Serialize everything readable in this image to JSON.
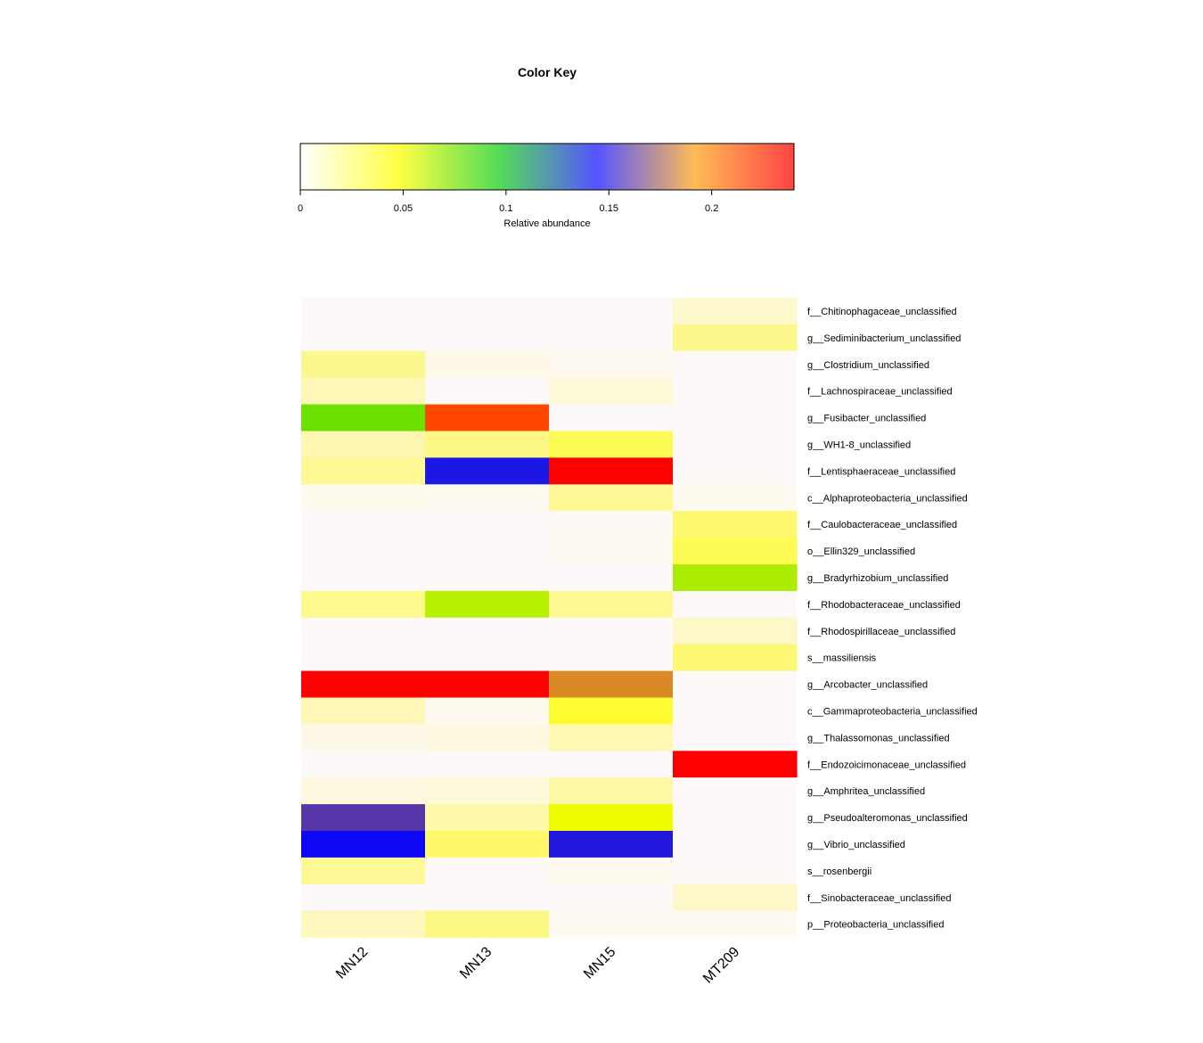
{
  "chart_data": {
    "type": "heatmap",
    "color_key": {
      "title": "Color Key",
      "label": "Relative abundance",
      "range": [
        0,
        0.24
      ],
      "ticks": [
        0,
        0.05,
        0.1,
        0.15,
        0.2
      ],
      "tick_labels": [
        "0",
        "0.05",
        "0.1",
        "0.15",
        "0.2"
      ],
      "gradient": [
        "#ffffff",
        "#ffff44",
        "#55dd55",
        "#5555ff",
        "#ffbb55",
        "#ff4444"
      ]
    },
    "columns": [
      "MN12",
      "MN13",
      "MN15",
      "MT209"
    ],
    "rows": [
      "f__Chitinophagaceae_unclassified",
      "g__Sediminibacterium_unclassified",
      "g__Clostridium_unclassified",
      "f__Lachnospiraceae_unclassified",
      "g__Fusibacter_unclassified",
      "g__WH1-8_unclassified",
      "f__Lentisphaeraceae_unclassified",
      "c__Alphaproteobacteria_unclassified",
      "f__Caulobacteraceae_unclassified",
      "o__Ellin329_unclassified",
      "g__Bradyrhizobium_unclassified",
      "f__Rhodobacteraceae_unclassified",
      "f__Rhodospirillaceae_unclassified",
      "s__massiliensis",
      "g__Arcobacter_unclassified",
      "c__Gammaproteobacteria_unclassified",
      "g__Thalassomonas_unclassified",
      "f__Endozoicimonaceae_unclassified",
      "g__Amphritea_unclassified",
      "g__Pseudoalteromonas_unclassified",
      "g__Vibrio_unclassified",
      "s__rosenbergii",
      "f__Sinobacteraceae_unclassified",
      "p__Proteobacteria_unclassified"
    ],
    "values": [
      [
        0,
        0,
        0,
        0.02
      ],
      [
        0,
        0,
        0,
        0.03
      ],
      [
        0.03,
        0.01,
        0.005,
        0
      ],
      [
        0.02,
        0,
        0.015,
        0
      ],
      [
        0.09,
        0.23,
        0,
        0
      ],
      [
        0.02,
        0.03,
        0.04,
        0
      ],
      [
        0.03,
        0.155,
        0.25,
        0
      ],
      [
        0.005,
        0.005,
        0.03,
        0.005
      ],
      [
        0,
        0,
        0,
        0.035
      ],
      [
        0,
        0,
        0.005,
        0.04
      ],
      [
        0,
        0,
        0,
        0.075
      ],
      [
        0.03,
        0.07,
        0.03,
        0
      ],
      [
        0,
        0,
        0,
        0.02
      ],
      [
        0,
        0,
        0,
        0.035
      ],
      [
        0.25,
        0.25,
        0.2,
        0
      ],
      [
        0.02,
        0.005,
        0.045,
        0
      ],
      [
        0.01,
        0.01,
        0.025,
        0
      ],
      [
        0,
        0,
        0,
        0.25
      ],
      [
        0.01,
        0.01,
        0.025,
        0
      ],
      [
        0.16,
        0.025,
        0.055,
        0
      ],
      [
        0.15,
        0.035,
        0.155,
        0
      ],
      [
        0.03,
        0,
        0.008,
        0
      ],
      [
        0,
        0,
        0,
        0.02
      ],
      [
        0.02,
        0.035,
        0.005,
        0.005
      ]
    ],
    "colors": {
      "f__Chitinophagaceae_unclassified": [
        "#fdf9f8",
        "#fdf9f8",
        "#fdf9f8",
        "#fef9cc"
      ],
      "g__Sediminibacterium_unclassified": [
        "#fdf9f8",
        "#fdf9f8",
        "#fdf9f8",
        "#fdf88e"
      ],
      "g__Clostridium_unclassified": [
        "#fdf88e",
        "#fef9e7",
        "#fdf9f0",
        "#fdf9f8"
      ],
      "f__Lachnospiraceae_unclassified": [
        "#fef7b5",
        "#fdf9f8",
        "#fef9d9",
        "#fdf9f8"
      ],
      "g__Fusibacter_unclassified": [
        "#6ae101",
        "#ff4700",
        "#fdf9f8",
        "#fdf9f8"
      ],
      "g__WH1-8_unclassified": [
        "#fef7b1",
        "#fef884",
        "#fdfc56",
        "#fdf9f8"
      ],
      "f__Lentisphaeraceae_unclassified": [
        "#fef895",
        "#1b18e3",
        "#ff0000",
        "#fdf9f8"
      ],
      "c__Alphaproteobacteria_unclassified": [
        "#fdf9ed",
        "#fef9ee",
        "#fef896",
        "#fdfaf0"
      ],
      "f__Caulobacteraceae_unclassified": [
        "#fdf9f8",
        "#fdf9f8",
        "#fdf9f4",
        "#fdf870"
      ],
      "o__Ellin329_unclassified": [
        "#fdf9f8",
        "#fdf9f8",
        "#fdfaf2",
        "#fdfc55"
      ],
      "g__Bradyrhizobium_unclassified": [
        "#fdf9f8",
        "#fdf9f8",
        "#fdf9f8",
        "#acec02"
      ],
      "f__Rhodobacteraceae_unclassified": [
        "#fdf98c",
        "#b8f102",
        "#fef895",
        "#fdf9f8"
      ],
      "f__Rhodospirillaceae_unclassified": [
        "#fdf9f8",
        "#fdf9f8",
        "#fdf9f8",
        "#fef7c7"
      ],
      "s__massiliensis": [
        "#fdf9f8",
        "#fdf9f8",
        "#fdf9f8",
        "#fdf873"
      ],
      "g__Arcobacter_unclassified": [
        "#ff0000",
        "#fe0101",
        "#d98a26",
        "#fdf9f8"
      ],
      "c__Gammaproteobacteria_unclassified": [
        "#fef7b8",
        "#fdf9ee",
        "#fdfc31",
        "#fdf9f8"
      ],
      "g__Thalassomonas_unclassified": [
        "#fef8e8",
        "#fef8e1",
        "#fef8b2",
        "#fdf9f8"
      ],
      "f__Endozoicimonaceae_unclassified": [
        "#fdf9f8",
        "#fdf9f8",
        "#fdf9f8",
        "#ff0000"
      ],
      "g__Amphritea_unclassified": [
        "#fef8de",
        "#fef8db",
        "#fef7a6",
        "#fdf9f8"
      ],
      "g__Pseudoalteromonas_unclassified": [
        "#5636a7",
        "#fef8aa",
        "#eefd00",
        "#fdf9f8"
      ],
      "g__Vibrio_unclassified": [
        "#0d07f4",
        "#fef86a",
        "#2118dc",
        "#fdf9f8"
      ],
      "s__rosenbergii": [
        "#fef894",
        "#fdf9f8",
        "#fdf9ee",
        "#fdf9f8"
      ],
      "f__Sinobacteraceae_unclassified": [
        "#fdf9f8",
        "#fdf9f8",
        "#fdf9f8",
        "#fef8c9"
      ],
      "p__Proteobacteria_unclassified": [
        "#fef7be",
        "#fdf783",
        "#fdfaf1",
        "#fdfaf1"
      ]
    }
  }
}
